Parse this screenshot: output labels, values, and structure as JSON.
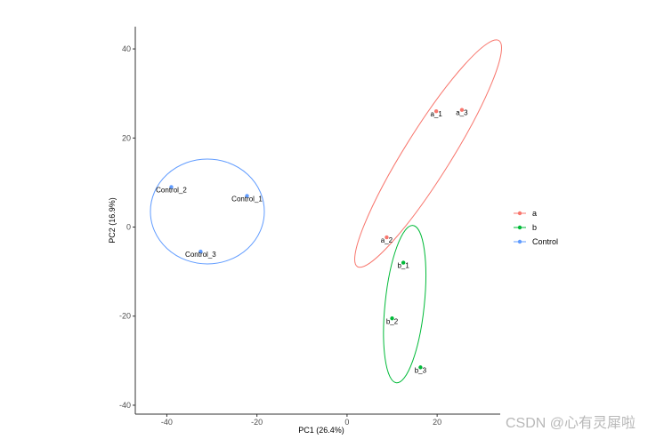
{
  "chart_data": {
    "type": "scatter",
    "xlabel": "PC1 (26.4%)",
    "ylabel": "PC2 (16.9%)",
    "xlim": [
      -47,
      34
    ],
    "ylim": [
      -42,
      45
    ],
    "xticks": [
      -40,
      -20,
      0,
      20
    ],
    "yticks": [
      -40,
      -20,
      0,
      20,
      40
    ],
    "grid": false,
    "legend_position": "right",
    "series": [
      {
        "name": "a",
        "color": "#F8766D",
        "points": [
          {
            "label": "a_1",
            "x": 19.8,
            "y": 26.0
          },
          {
            "label": "a_2",
            "x": 8.8,
            "y": -2.3
          },
          {
            "label": "a_3",
            "x": 25.5,
            "y": 26.3
          }
        ],
        "ellipse": {
          "cx": 18.0,
          "cy": 16.5,
          "angle_deg": 58,
          "rx_px": 150,
          "ry_px": 26
        }
      },
      {
        "name": "b",
        "color": "#00BA38",
        "points": [
          {
            "label": "b_1",
            "x": 12.5,
            "y": -8.0
          },
          {
            "label": "b_2",
            "x": 10.0,
            "y": -20.5
          },
          {
            "label": "b_3",
            "x": 16.3,
            "y": -31.5
          }
        ],
        "ellipse": {
          "cx": 12.8,
          "cy": -17.3,
          "angle_deg": 84,
          "rx_px": 89,
          "ry_px": 22
        }
      },
      {
        "name": "Control",
        "color": "#619CFF",
        "points": [
          {
            "label": "Control_1",
            "x": -22.2,
            "y": 7.0
          },
          {
            "label": "Control_2",
            "x": -39.0,
            "y": 9.0
          },
          {
            "label": "Control_3",
            "x": -32.5,
            "y": -5.5
          }
        ],
        "ellipse": {
          "cx": -31.0,
          "cy": 3.5,
          "angle_deg": 0,
          "rx_px": 64,
          "ry_px": 59
        }
      }
    ]
  },
  "watermark": "CSDN @心有灵犀啦"
}
